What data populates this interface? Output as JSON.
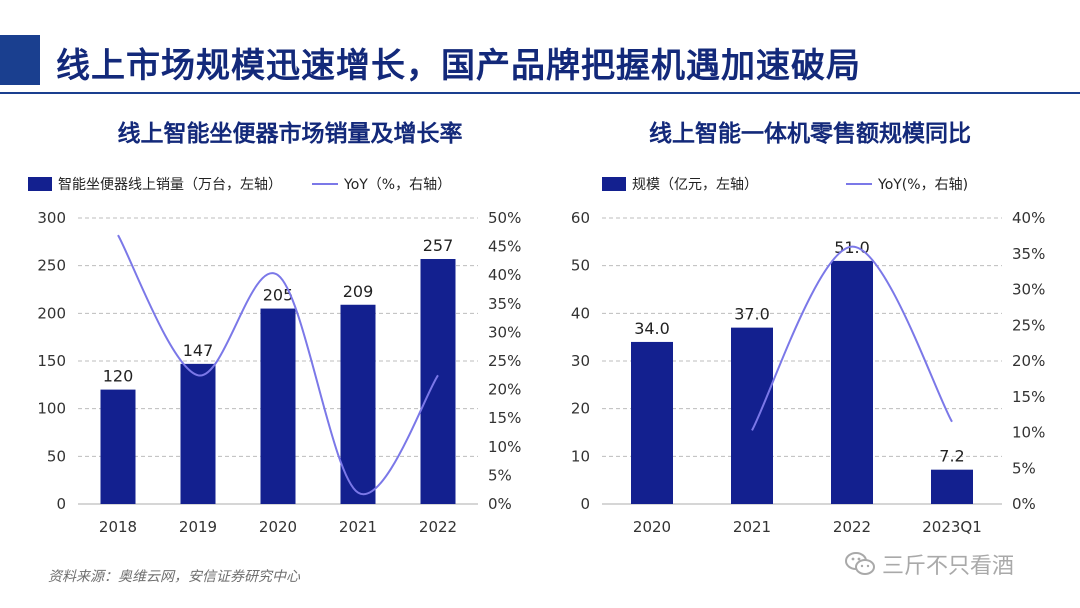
{
  "page_title": "线上市场规模迅速增长，国产品牌把握机遇加速破局",
  "source": "资料来源：奥维云网，安信证券研究中心",
  "watermark": "三斤不只看酒",
  "colors": {
    "bar": "#13208f",
    "line": "#7b78e8",
    "title": "#13297a",
    "grid": "#bdbdbd",
    "accent": "#1a3f8f"
  },
  "chart_data": [
    {
      "type": "bar",
      "title": "线上智能坐便器市场销量及增长率",
      "categories": [
        "2018",
        "2019",
        "2020",
        "2021",
        "2022"
      ],
      "series": [
        {
          "name": "智能坐便器线上销量（万台，左轴）",
          "kind": "bar",
          "axis": "left",
          "values": [
            120,
            147,
            205,
            209,
            257
          ]
        },
        {
          "name": "YoY（%，右轴）",
          "kind": "line",
          "axis": "right",
          "values": [
            47,
            22.5,
            40,
            2,
            22.5
          ]
        }
      ],
      "data_labels": [
        "120",
        "147",
        "205",
        "209",
        "257"
      ],
      "ylim_left": [
        0,
        300
      ],
      "yticks_left": [
        "0",
        "50",
        "100",
        "150",
        "200",
        "250",
        "300"
      ],
      "ylim_right": [
        0,
        50
      ],
      "yticks_right": [
        "0%",
        "5%",
        "10%",
        "15%",
        "20%",
        "25%",
        "30%",
        "35%",
        "40%",
        "45%",
        "50%"
      ],
      "legend": {
        "bar": "智能坐便器线上销量（万台，左轴）",
        "line": "YoY（%，右轴）"
      }
    },
    {
      "type": "bar",
      "title": "线上智能一体机零售额规模同比",
      "categories": [
        "2020",
        "2021",
        "2022",
        "2023Q1"
      ],
      "series": [
        {
          "name": "规模（亿元，左轴）",
          "kind": "bar",
          "axis": "left",
          "values": [
            34.0,
            37.0,
            51.0,
            7.2
          ]
        },
        {
          "name": "YoY(%，右轴)",
          "kind": "line",
          "axis": "right",
          "values": [
            null,
            10.3,
            36,
            11.5
          ]
        }
      ],
      "data_labels": [
        "34.0",
        "37.0",
        "51.0",
        "7.2"
      ],
      "ylim_left": [
        0,
        60
      ],
      "yticks_left": [
        "0",
        "10",
        "20",
        "30",
        "40",
        "50",
        "60"
      ],
      "ylim_right": [
        0,
        40
      ],
      "yticks_right": [
        "0%",
        "5%",
        "10%",
        "15%",
        "20%",
        "25%",
        "30%",
        "35%",
        "40%"
      ],
      "legend": {
        "bar": "规模（亿元，左轴）",
        "line": "YoY(%，右轴)"
      }
    }
  ]
}
